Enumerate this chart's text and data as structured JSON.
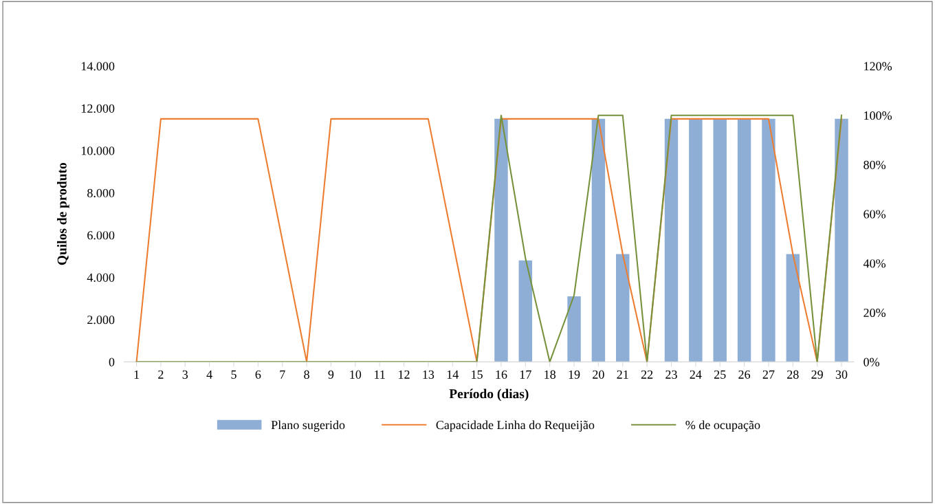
{
  "chart_data": {
    "type": "bar",
    "xlabel": "Período (dias)",
    "ylabel": "Quilos de produto",
    "categories": [
      "1",
      "2",
      "3",
      "4",
      "5",
      "6",
      "7",
      "8",
      "9",
      "10",
      "11",
      "12",
      "13",
      "14",
      "15",
      "16",
      "17",
      "18",
      "19",
      "20",
      "21",
      "22",
      "23",
      "24",
      "25",
      "26",
      "27",
      "28",
      "29",
      "30"
    ],
    "series": [
      {
        "name": "Plano sugerido",
        "color": "#8eaed6",
        "values": [
          0,
          0,
          0,
          0,
          0,
          0,
          0,
          0,
          0,
          0,
          0,
          0,
          0,
          0,
          0,
          11500,
          4800,
          0,
          3100,
          11500,
          5100,
          0,
          11500,
          11500,
          11500,
          11500,
          11500,
          5100,
          0,
          11500
        ]
      },
      {
        "name": "Capacidade Linha do Requeijão",
        "type": "line",
        "color": "#ed7d31",
        "values": [
          0,
          11500,
          11500,
          11500,
          11500,
          11500,
          5750,
          0,
          11500,
          11500,
          11500,
          11500,
          11500,
          5750,
          0,
          11500,
          11500,
          11500,
          11500,
          11500,
          5100,
          0,
          11500,
          11500,
          11500,
          11500,
          11500,
          5100,
          0,
          11500
        ]
      },
      {
        "name": "% de ocupação",
        "type": "line",
        "axis": "y2",
        "color": "#76923c",
        "values": [
          0,
          0,
          0,
          0,
          0,
          0,
          0,
          0,
          0,
          0,
          0,
          0,
          0,
          0,
          0,
          100,
          42,
          0,
          27,
          100,
          100,
          0,
          100,
          100,
          100,
          100,
          100,
          100,
          0,
          100
        ]
      }
    ],
    "ylim": [
      0,
      14000
    ],
    "yticks": [
      {
        "value": 0,
        "label": "0"
      },
      {
        "value": 2000,
        "label": "2.000"
      },
      {
        "value": 4000,
        "label": "4.000"
      },
      {
        "value": 6000,
        "label": "6.000"
      },
      {
        "value": 8000,
        "label": "8.000"
      },
      {
        "value": 10000,
        "label": "10.000"
      },
      {
        "value": 12000,
        "label": "12.000"
      },
      {
        "value": 14000,
        "label": "14.000"
      }
    ],
    "y2lim": [
      0,
      120
    ],
    "y2ticks": [
      {
        "value": 0,
        "label": "0%"
      },
      {
        "value": 20,
        "label": "20%"
      },
      {
        "value": 40,
        "label": "40%"
      },
      {
        "value": 60,
        "label": "60%"
      },
      {
        "value": 80,
        "label": "80%"
      },
      {
        "value": 100,
        "label": "100%"
      },
      {
        "value": 120,
        "label": "120%"
      }
    ],
    "legend": "bottom",
    "grid": false
  }
}
